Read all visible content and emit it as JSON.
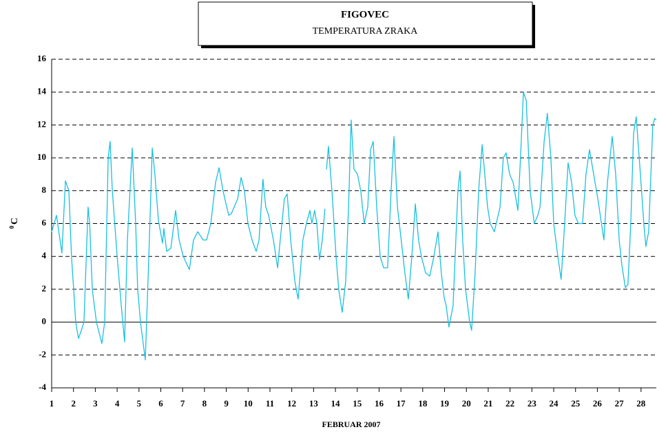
{
  "chart_data": {
    "type": "line",
    "title": "FIGOVEC",
    "subtitle": "TEMPERATURA  ZRAKA",
    "ylabel_sup": "0",
    "ylabel": "C",
    "xlabel": "FEBRUAR  2007",
    "color": "#17c0e0",
    "x": [
      1.0,
      1.22,
      1.47,
      1.63,
      1.79,
      1.91,
      2.01,
      2.1,
      2.23,
      2.36,
      2.48,
      2.67,
      2.74,
      2.86,
      3.05,
      3.3,
      3.43,
      3.59,
      3.68,
      3.78,
      4.0,
      4.19,
      4.34,
      4.47,
      4.69,
      4.85,
      4.94,
      5.07,
      5.29,
      5.45,
      5.61,
      5.73,
      5.89,
      6.08,
      6.14,
      6.27,
      6.46,
      6.68,
      6.84,
      7.03,
      7.31,
      7.5,
      7.69,
      7.94,
      8.1,
      8.29,
      8.51,
      8.67,
      8.85,
      9.11,
      9.23,
      9.36,
      9.52,
      9.68,
      9.83,
      9.99,
      10.18,
      10.37,
      10.5,
      10.68,
      10.81,
      10.94,
      11.16,
      11.35,
      11.47,
      11.66,
      11.79,
      11.95,
      12.14,
      12.29,
      12.51,
      12.67,
      12.83,
      12.92,
      13.05,
      13.15,
      13.27,
      13.4,
      13.52,
      13.55,
      13.59,
      13.68,
      13.84,
      14.03,
      14.15,
      14.31,
      14.47,
      14.6,
      14.72,
      14.85,
      15.01,
      15.16,
      15.32,
      15.48,
      15.61,
      15.73,
      15.89,
      16.05,
      16.21,
      16.39,
      16.55,
      16.68,
      16.84,
      16.93,
      17.18,
      17.34,
      17.5,
      17.66,
      17.81,
      17.94,
      18.13,
      18.32,
      18.51,
      18.7,
      18.85,
      18.98,
      19.07,
      19.2,
      19.39,
      19.61,
      19.71,
      19.83,
      19.96,
      20.15,
      20.24,
      20.4,
      20.56,
      20.72,
      20.84,
      20.97,
      21.09,
      21.28,
      21.54,
      21.69,
      21.82,
      21.98,
      22.14,
      22.36,
      22.48,
      22.61,
      22.74,
      22.92,
      23.11,
      23.27,
      23.37,
      23.56,
      23.71,
      23.87,
      24.0,
      24.19,
      24.34,
      24.5,
      24.66,
      24.82,
      24.97,
      25.13,
      25.32,
      25.48,
      25.64,
      25.83,
      26.02,
      26.3,
      26.46,
      26.68,
      26.84,
      27.0,
      27.12,
      27.28,
      27.4,
      27.53,
      27.66,
      27.78,
      27.97,
      28.13,
      28.22,
      28.35,
      28.54,
      28.63,
      28.69
    ],
    "values": [
      5.5,
      6.5,
      4.2,
      8.6,
      8,
      4,
      2,
      0,
      -1,
      -0.5,
      0,
      7,
      6,
      2,
      0,
      -1.3,
      0,
      10,
      11,
      8,
      4,
      1,
      -1.2,
      5,
      10.6,
      6,
      2,
      0,
      -2.3,
      4,
      10.6,
      9,
      6.2,
      4.8,
      5.7,
      4.3,
      4.5,
      6.8,
      5,
      4,
      3.2,
      5,
      5.5,
      5,
      5,
      6,
      8.5,
      9.4,
      8,
      6.5,
      6.6,
      7,
      7.5,
      8.8,
      8,
      6,
      5,
      4.3,
      5,
      8.7,
      7,
      6.5,
      5,
      3.3,
      5,
      7.5,
      7.8,
      5,
      2.5,
      1.4,
      5,
      6,
      6.8,
      6,
      6.8,
      6,
      3.8,
      5,
      6.9,
      null,
      9.3,
      10.7,
      8,
      4,
      2,
      0.6,
      2.5,
      7,
      12.3,
      9.3,
      9,
      8,
      6,
      7,
      10.5,
      11,
      7,
      4,
      3.3,
      3.3,
      8,
      11.3,
      7,
      6,
      3,
      1.4,
      4,
      7.2,
      5,
      4,
      3,
      2.8,
      4,
      5.5,
      3,
      1.5,
      1,
      -0.3,
      1,
      8,
      9.2,
      5,
      2,
      0,
      -0.5,
      3,
      8,
      10.8,
      9,
      7,
      6,
      5.5,
      7,
      10,
      10.3,
      9,
      8.5,
      6.8,
      10,
      14,
      13.5,
      8,
      6,
      6.5,
      7,
      11,
      12.7,
      10,
      6,
      4,
      2.6,
      6,
      9.7,
      8.5,
      6.5,
      6,
      6,
      9,
      10.5,
      9,
      7.5,
      5,
      8.5,
      11.3,
      9,
      5,
      3.5,
      2.1,
      2.3,
      6,
      11.5,
      12.5,
      9,
      6,
      4.6,
      5.5,
      12,
      12.4,
      12.3
    ],
    "xlim": [
      1,
      28.7
    ],
    "xticks": [
      1,
      2,
      3,
      4,
      5,
      6,
      7,
      8,
      9,
      10,
      11,
      12,
      13,
      14,
      15,
      16,
      17,
      18,
      19,
      20,
      21,
      22,
      23,
      24,
      25,
      26,
      27,
      28
    ],
    "ylim": [
      -4,
      16
    ],
    "yticks": [
      -4,
      -2,
      0,
      2,
      4,
      6,
      8,
      10,
      12,
      14,
      16
    ],
    "grid": true
  }
}
